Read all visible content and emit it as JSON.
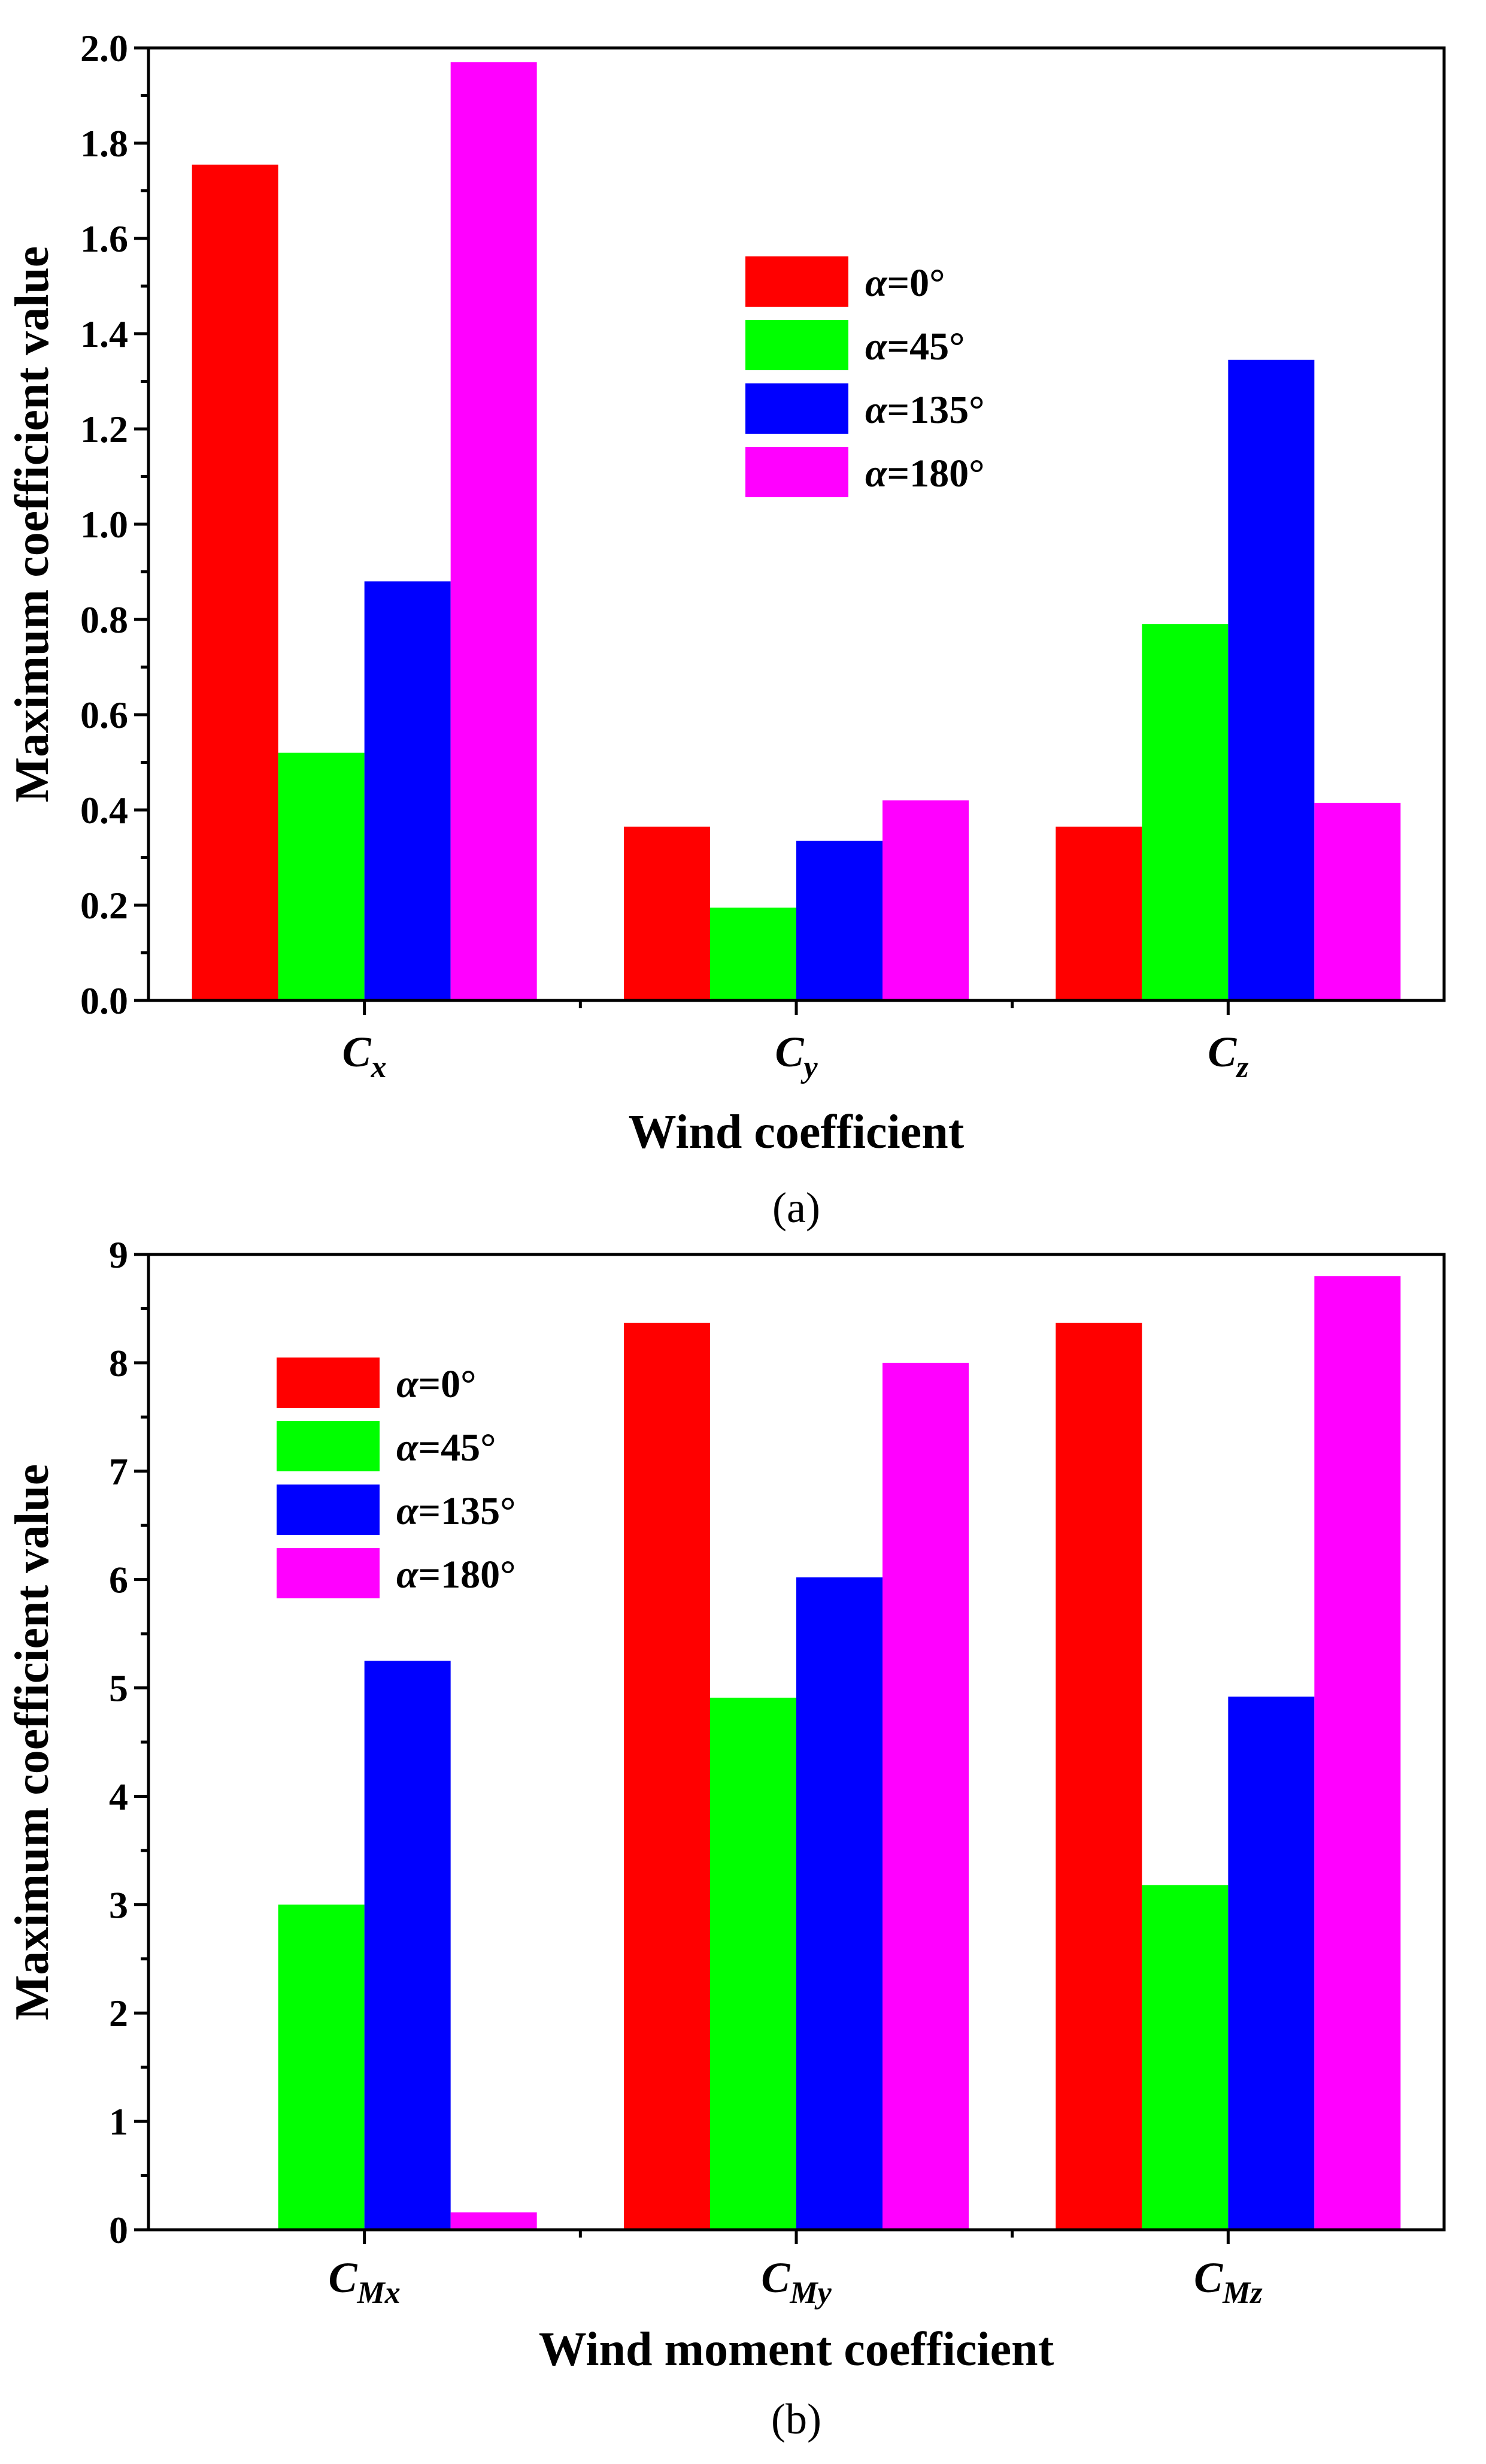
{
  "chart_data": [
    {
      "type": "bar",
      "panel_label": "(a)",
      "xlabel": "Wind coefficient",
      "ylabel": "Maximum coefficient value",
      "categories": [
        {
          "main": "C",
          "sub": "x"
        },
        {
          "main": "C",
          "sub": "y"
        },
        {
          "main": "C",
          "sub": "z"
        }
      ],
      "ylim": [
        0,
        2.0
      ],
      "yticks": [
        "0.0",
        "0.2",
        "0.4",
        "0.6",
        "0.8",
        "1.0",
        "1.2",
        "1.4",
        "1.6",
        "1.8",
        "2.0"
      ],
      "legend_position": "center",
      "series": [
        {
          "name": "α=0°",
          "symbol": "α",
          "rest": "=0°",
          "color": "#ff0000",
          "values": [
            1.755,
            0.365,
            0.365
          ]
        },
        {
          "name": "α=45°",
          "symbol": "α",
          "rest": "=45°",
          "color": "#00ff00",
          "values": [
            0.52,
            0.195,
            0.79
          ]
        },
        {
          "name": "α=135°",
          "symbol": "α",
          "rest": "=135°",
          "color": "#0000ff",
          "values": [
            0.88,
            0.335,
            1.345
          ]
        },
        {
          "name": "α=180°",
          "symbol": "α",
          "rest": "=180°",
          "color": "#ff00ff",
          "values": [
            1.97,
            0.42,
            0.415
          ]
        }
      ]
    },
    {
      "type": "bar",
      "panel_label": "(b)",
      "xlabel": "Wind moment coefficient",
      "ylabel": "Maximum coefficient value",
      "categories": [
        {
          "main": "C",
          "sub": "Mx"
        },
        {
          "main": "C",
          "sub": "My"
        },
        {
          "main": "C",
          "sub": "Mz"
        }
      ],
      "ylim": [
        0,
        9
      ],
      "yticks": [
        "0",
        "1",
        "2",
        "3",
        "4",
        "5",
        "6",
        "7",
        "8",
        "9"
      ],
      "legend_position": "top-left",
      "series": [
        {
          "name": "α=0°",
          "symbol": "α",
          "rest": "=0°",
          "color": "#ff0000",
          "values": [
            0,
            8.37,
            8.37
          ]
        },
        {
          "name": "α=45°",
          "symbol": "α",
          "rest": "=45°",
          "color": "#00ff00",
          "values": [
            3.0,
            4.91,
            3.18
          ]
        },
        {
          "name": "α=135°",
          "symbol": "α",
          "rest": "=135°",
          "color": "#0000ff",
          "values": [
            5.25,
            6.02,
            4.92
          ]
        },
        {
          "name": "α=180°",
          "symbol": "α",
          "rest": "=180°",
          "color": "#ff00ff",
          "values": [
            0.16,
            8.0,
            8.8
          ]
        }
      ]
    }
  ]
}
